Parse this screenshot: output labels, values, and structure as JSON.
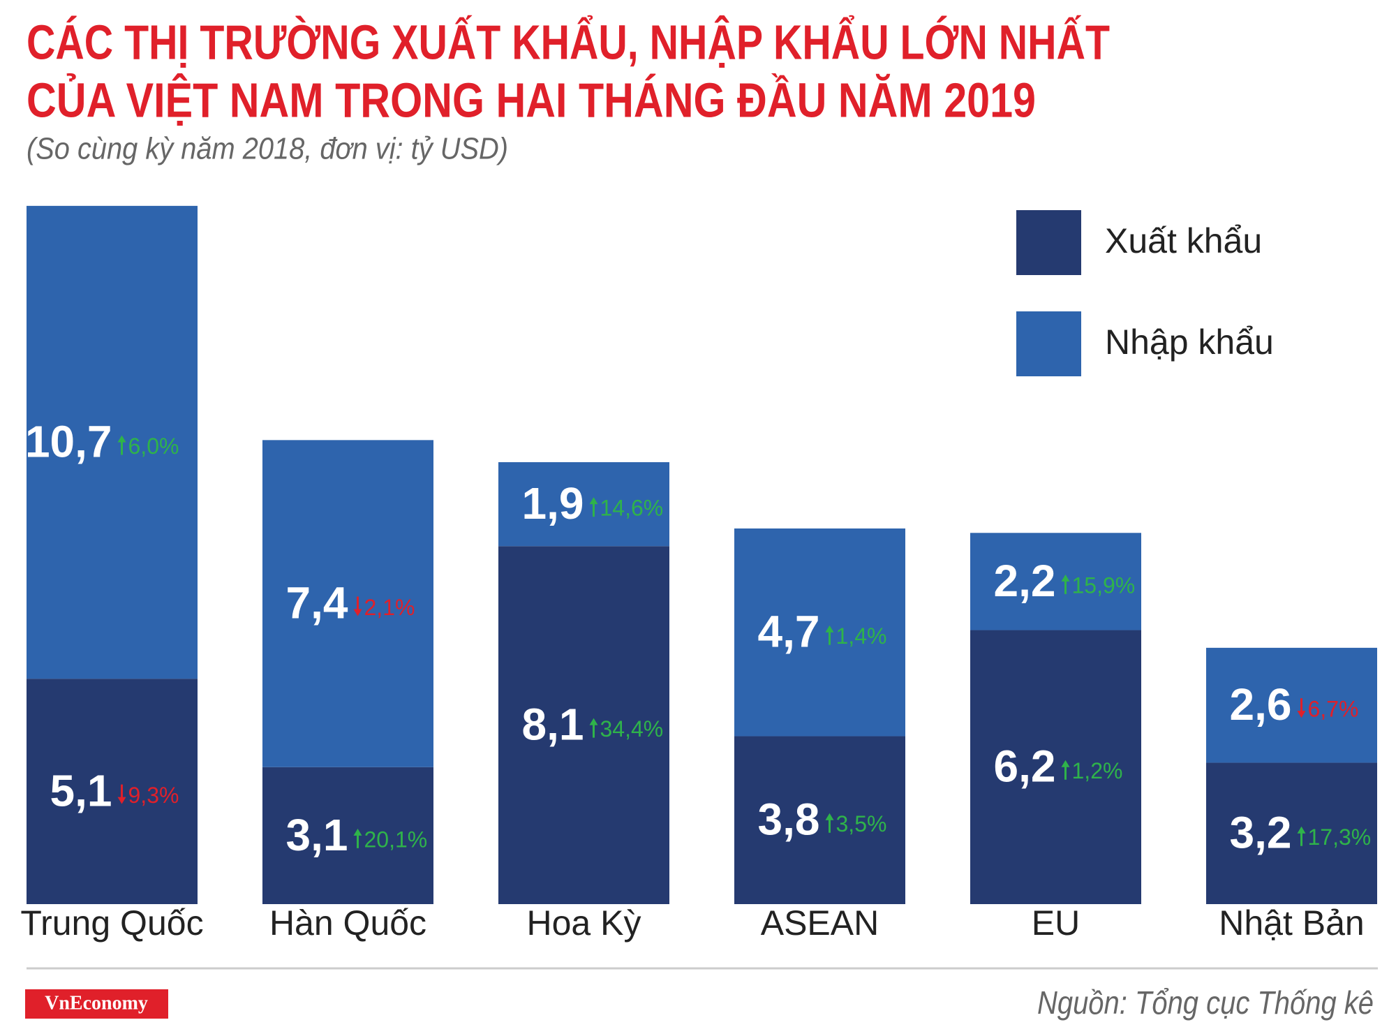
{
  "chart_data": {
    "type": "stacked_bar",
    "title": [
      "CÁC THỊ TRƯỜNG XUẤT KHẨU, NHẬP KHẨU LỚN NHẤT",
      "CỦA VIỆT NAM TRONG HAI THÁNG ĐẦU NĂM 2019"
    ],
    "subtitle": "(So cùng kỳ năm 2018, đơn vị: tỷ USD)",
    "categories": [
      "Trung Quốc",
      "Hàn Quốc",
      "Hoa Kỳ",
      "ASEAN",
      "EU",
      "Nhật Bản"
    ],
    "series": [
      {
        "name": "Xuất khẩu",
        "color": "#253a70",
        "values": [
          5.1,
          3.1,
          8.1,
          3.8,
          6.2,
          3.2
        ],
        "value_labels": [
          "5,1",
          "3,1",
          "8,1",
          "3,8",
          "6,2",
          "3,2"
        ],
        "changes": [
          -9.3,
          20.1,
          34.4,
          3.5,
          1.2,
          17.3
        ],
        "change_labels": [
          "9,3%",
          "20,1%",
          "34,4%",
          "3,5%",
          "1,2%",
          "17,3%"
        ]
      },
      {
        "name": "Nhập khẩu",
        "color": "#2e64ad",
        "values": [
          10.7,
          7.4,
          1.9,
          4.7,
          2.2,
          2.6
        ],
        "value_labels": [
          "10,7",
          "7,4",
          "1,9",
          "4,7",
          "2,2",
          "2,6"
        ],
        "changes": [
          6.0,
          -2.1,
          14.6,
          1.4,
          15.9,
          -6.7
        ],
        "change_labels": [
          "6,0%",
          "2,1%",
          "14,6%",
          "1,4%",
          "15,9%",
          "6,7%"
        ]
      }
    ],
    "up_color": "#2fb34a",
    "down_color": "#e0202a",
    "source": "Nguồn: Tổng cục Thống kê",
    "logo": "VnEconomy"
  }
}
